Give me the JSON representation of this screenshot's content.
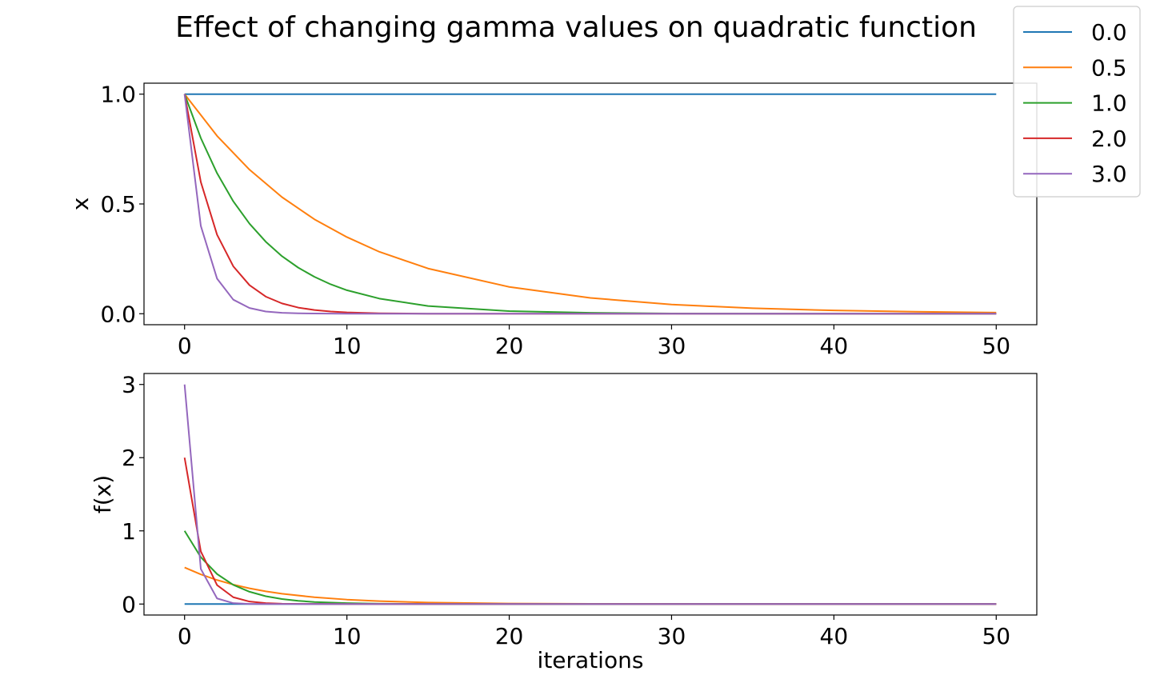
{
  "figure": {
    "title": "Effect of changing gamma values on quadratic function"
  },
  "legend": {
    "position": "top-right",
    "entries": [
      {
        "label": "0.0",
        "color": "#1f77b4"
      },
      {
        "label": "0.5",
        "color": "#ff7f0e"
      },
      {
        "label": "1.0",
        "color": "#2ca02c"
      },
      {
        "label": "2.0",
        "color": "#d62728"
      },
      {
        "label": "3.0",
        "color": "#9467bd"
      }
    ]
  },
  "chart_data": [
    {
      "type": "line",
      "title": "",
      "xlabel": "",
      "ylabel": "x",
      "xlim": [
        -2.5,
        52.5
      ],
      "ylim": [
        -0.05,
        1.05
      ],
      "xticks": [
        0,
        10,
        20,
        30,
        40,
        50
      ],
      "xtick_labels": [
        "0",
        "10",
        "20",
        "30",
        "40",
        "50"
      ],
      "yticks": [
        0.0,
        0.5,
        1.0
      ],
      "ytick_labels": [
        "0.0",
        "0.5",
        "1.0"
      ],
      "grid": false,
      "series": [
        {
          "name": "0.0",
          "color": "#1f77b4",
          "x": [
            0,
            50
          ],
          "y": [
            1.0,
            1.0
          ]
        },
        {
          "name": "0.5",
          "color": "#ff7f0e",
          "x": [
            0,
            2,
            4,
            6,
            8,
            10,
            12,
            15,
            20,
            25,
            30,
            35,
            40,
            45,
            50
          ],
          "y": [
            1.0,
            0.81,
            0.656,
            0.531,
            0.43,
            0.349,
            0.282,
            0.206,
            0.122,
            0.072,
            0.042,
            0.025,
            0.015,
            0.009,
            0.005
          ]
        },
        {
          "name": "1.0",
          "color": "#2ca02c",
          "x": [
            0,
            1,
            2,
            3,
            4,
            5,
            6,
            7,
            8,
            9,
            10,
            12,
            15,
            20,
            25,
            30,
            40,
            50
          ],
          "y": [
            1.0,
            0.8,
            0.64,
            0.512,
            0.41,
            0.328,
            0.262,
            0.21,
            0.168,
            0.134,
            0.107,
            0.069,
            0.035,
            0.012,
            0.004,
            0.001,
            0.0,
            0.0
          ]
        },
        {
          "name": "2.0",
          "color": "#d62728",
          "x": [
            0,
            1,
            2,
            3,
            4,
            5,
            6,
            7,
            8,
            9,
            10,
            12,
            15,
            50
          ],
          "y": [
            1.0,
            0.6,
            0.36,
            0.216,
            0.13,
            0.078,
            0.047,
            0.028,
            0.017,
            0.01,
            0.006,
            0.002,
            0.0,
            0.0
          ]
        },
        {
          "name": "3.0",
          "color": "#9467bd",
          "x": [
            0,
            1,
            2,
            3,
            4,
            5,
            6,
            7,
            8,
            10,
            50
          ],
          "y": [
            1.0,
            0.4,
            0.16,
            0.064,
            0.026,
            0.01,
            0.004,
            0.002,
            0.001,
            0.0,
            0.0
          ]
        }
      ]
    },
    {
      "type": "line",
      "title": "",
      "xlabel": "iterations",
      "ylabel": "f(x)",
      "xlim": [
        -2.5,
        52.5
      ],
      "ylim": [
        -0.15,
        3.15
      ],
      "xticks": [
        0,
        10,
        20,
        30,
        40,
        50
      ],
      "xtick_labels": [
        "0",
        "10",
        "20",
        "30",
        "40",
        "50"
      ],
      "yticks": [
        0,
        1,
        2,
        3
      ],
      "ytick_labels": [
        "0",
        "1",
        "2",
        "3"
      ],
      "grid": false,
      "series": [
        {
          "name": "0.0",
          "color": "#1f77b4",
          "x": [
            0,
            50
          ],
          "y": [
            0.0,
            0.0
          ]
        },
        {
          "name": "0.5",
          "color": "#ff7f0e",
          "x": [
            0,
            1,
            2,
            3,
            4,
            5,
            6,
            8,
            10,
            12,
            15,
            20,
            25,
            30,
            40,
            50
          ],
          "y": [
            0.5,
            0.405,
            0.328,
            0.266,
            0.215,
            0.174,
            0.141,
            0.093,
            0.061,
            0.04,
            0.021,
            0.007,
            0.003,
            0.001,
            0.0,
            0.0
          ]
        },
        {
          "name": "1.0",
          "color": "#2ca02c",
          "x": [
            0,
            1,
            2,
            3,
            4,
            5,
            6,
            7,
            8,
            10,
            12,
            15,
            20,
            50
          ],
          "y": [
            1.0,
            0.64,
            0.41,
            0.262,
            0.168,
            0.107,
            0.069,
            0.044,
            0.028,
            0.012,
            0.005,
            0.001,
            0.0,
            0.0
          ]
        },
        {
          "name": "2.0",
          "color": "#d62728",
          "x": [
            0,
            1,
            2,
            3,
            4,
            5,
            6,
            8,
            10,
            50
          ],
          "y": [
            2.0,
            0.72,
            0.259,
            0.093,
            0.034,
            0.012,
            0.004,
            0.001,
            0.0,
            0.0
          ]
        },
        {
          "name": "3.0",
          "color": "#9467bd",
          "x": [
            0,
            1,
            2,
            3,
            4,
            5,
            6,
            50
          ],
          "y": [
            3.0,
            0.48,
            0.077,
            0.012,
            0.002,
            0.0,
            0.0,
            0.0
          ]
        }
      ]
    }
  ]
}
